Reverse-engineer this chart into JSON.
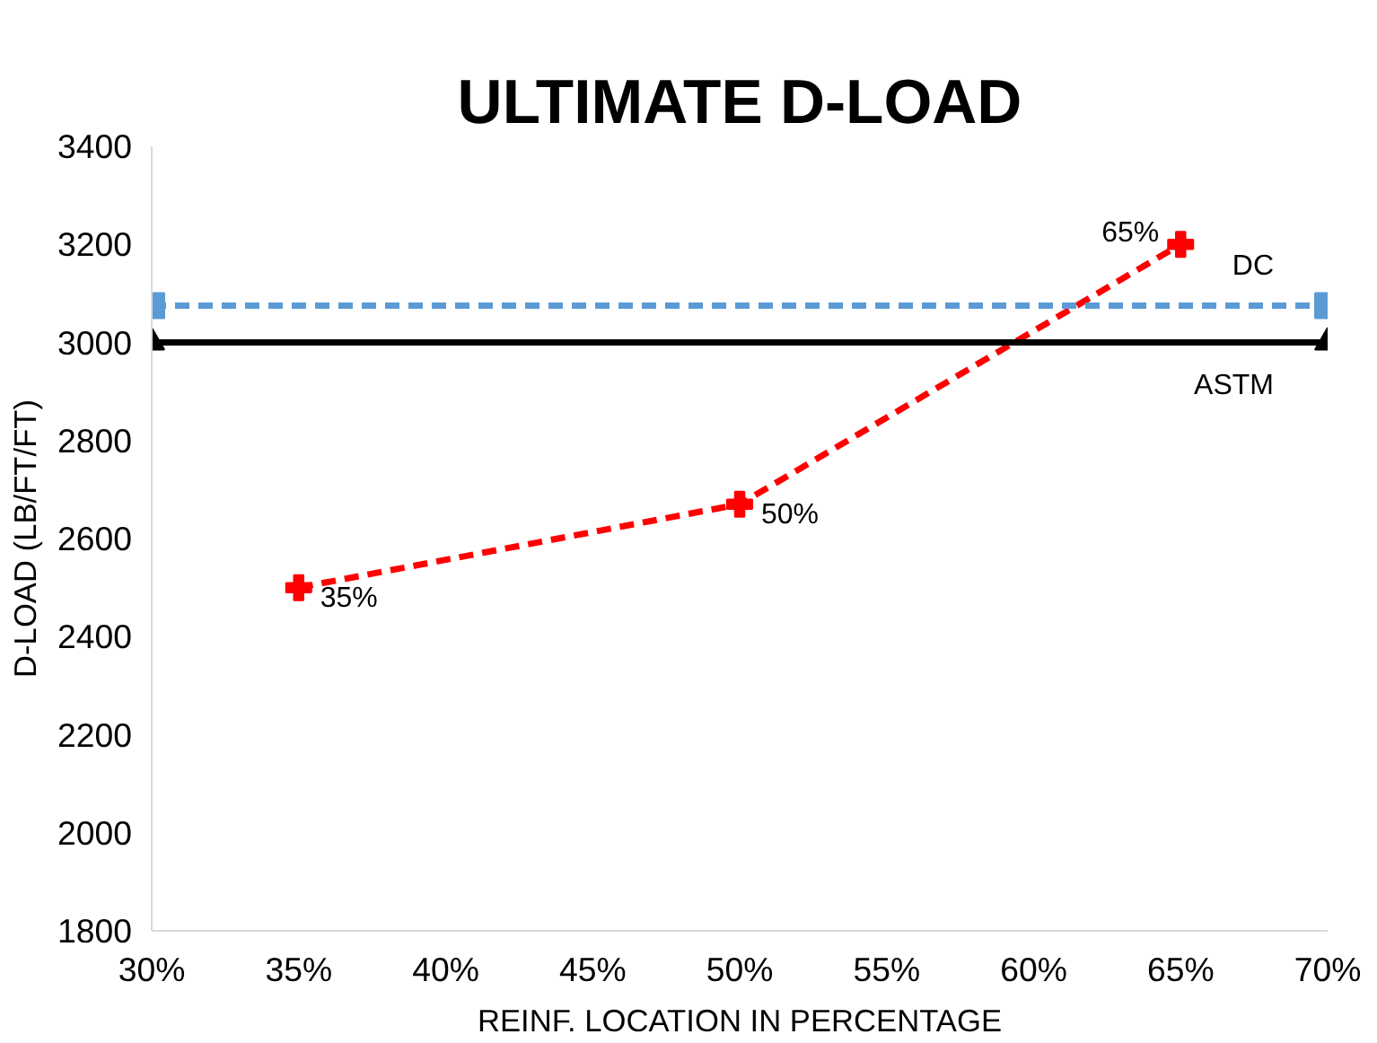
{
  "chart_data": {
    "type": "line",
    "title": "ULTIMATE D-LOAD",
    "xlabel": "REINF. LOCATION IN PERCENTAGE",
    "ylabel": "D-LOAD (LB/FT/FT)",
    "xlim": [
      30,
      70
    ],
    "xticks": [
      {
        "value": 30,
        "label": "30%"
      },
      {
        "value": 35,
        "label": "35%"
      },
      {
        "value": 40,
        "label": "40%"
      },
      {
        "value": 45,
        "label": "45%"
      },
      {
        "value": 50,
        "label": "50%"
      },
      {
        "value": 55,
        "label": "55%"
      },
      {
        "value": 60,
        "label": "60%"
      },
      {
        "value": 65,
        "label": "65%"
      },
      {
        "value": 70,
        "label": "70%"
      }
    ],
    "ylim": [
      1800,
      3400
    ],
    "yticks": [
      1800,
      2000,
      2200,
      2400,
      2600,
      2800,
      3000,
      3200,
      3400
    ],
    "grid": false,
    "annotations": [
      {
        "text": "35%",
        "x": 35,
        "y": 2500
      },
      {
        "text": "50%",
        "x": 50,
        "y": 2670
      },
      {
        "text": "65%",
        "x": 65,
        "y": 3200
      }
    ],
    "series": [
      {
        "color": "#ff0000",
        "x": [
          35,
          50,
          65
        ],
        "values": [
          2500,
          2670,
          3200
        ],
        "marker": "cross",
        "line_style": "dashed"
      },
      {
        "name": "DC",
        "color": "#5b9bd5",
        "x": [
          30,
          70
        ],
        "values": [
          3075,
          3075
        ],
        "marker": "square",
        "line_style": "dashed"
      },
      {
        "name": "ASTM",
        "color": "#000000",
        "x": [
          30,
          70
        ],
        "values": [
          3000,
          3000
        ],
        "marker": "triangle",
        "line_style": "solid"
      }
    ]
  }
}
